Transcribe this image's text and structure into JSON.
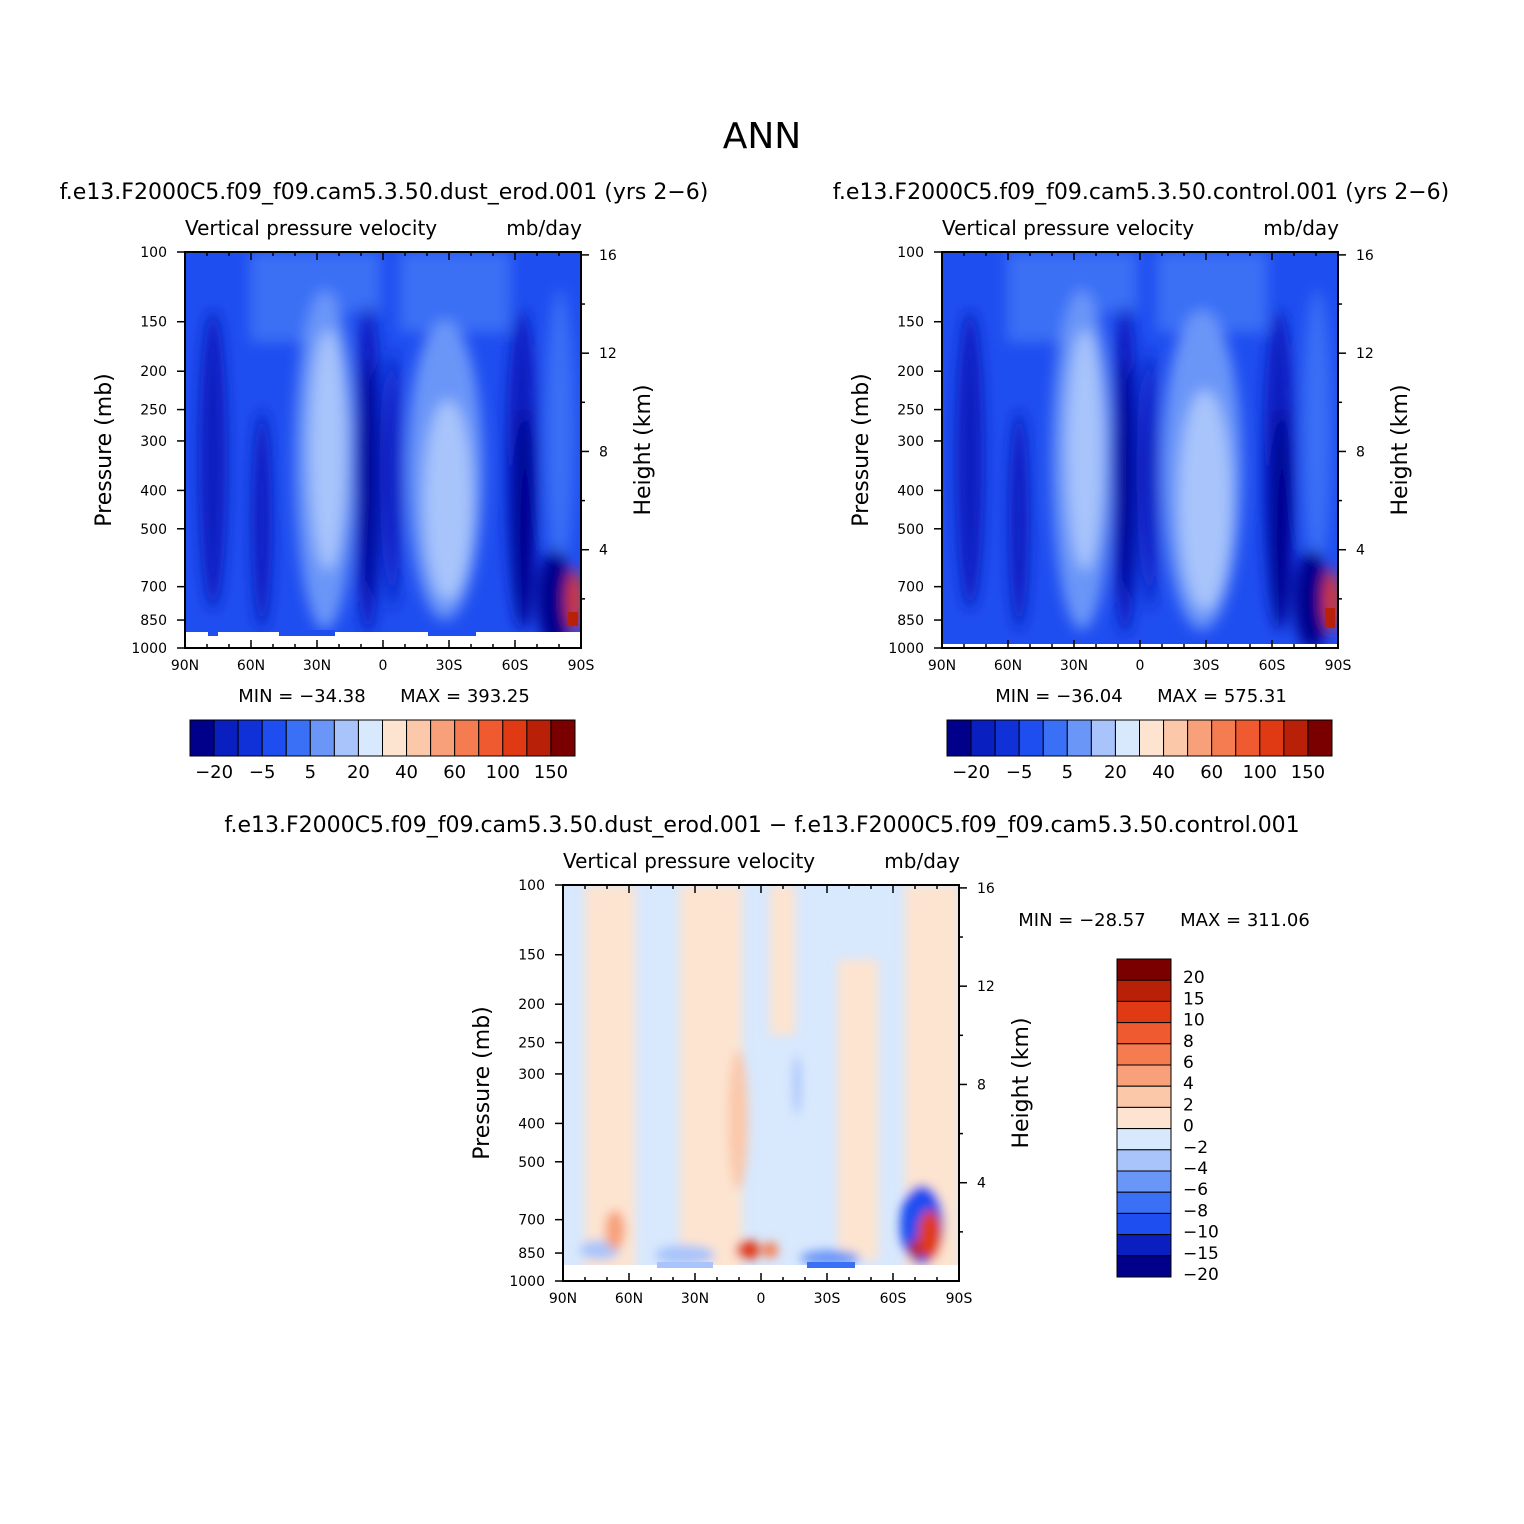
{
  "figure": {
    "title": "ANN"
  },
  "chart_data": [
    {
      "type": "heatmap",
      "run_label": "f.e13.F2000C5.f09_f09.cam5.3.50.dust_erod.001  (yrs 2−6)",
      "title": "Vertical pressure velocity",
      "units": "mb/day",
      "ylabel": "Pressure (mb)",
      "y2label": "Height (km)",
      "xticks": [
        "90N",
        "60N",
        "30N",
        "0",
        "30S",
        "60S",
        "90S"
      ],
      "yticks": [
        100,
        150,
        200,
        250,
        300,
        400,
        500,
        700,
        850,
        1000
      ],
      "y2ticks": [
        16,
        12,
        8,
        4
      ],
      "ylim": [
        1000,
        100
      ],
      "min_label": "MIN = −34.38",
      "max_label": "MAX = 393.25",
      "levels": [
        -20,
        -15,
        -10,
        -5,
        -2,
        5,
        10,
        20,
        30,
        40,
        50,
        60,
        80,
        100,
        120,
        150
      ],
      "colorbar_labels": [
        "−20",
        "−5",
        "5",
        "20",
        "40",
        "60",
        "100",
        "150"
      ]
    },
    {
      "type": "heatmap",
      "run_label": "f.e13.F2000C5.f09_f09.cam5.3.50.control.001  (yrs 2−6)",
      "title": "Vertical pressure velocity",
      "units": "mb/day",
      "ylabel": "Pressure (mb)",
      "y2label": "Height (km)",
      "xticks": [
        "90N",
        "60N",
        "30N",
        "0",
        "30S",
        "60S",
        "90S"
      ],
      "yticks": [
        100,
        150,
        200,
        250,
        300,
        400,
        500,
        700,
        850,
        1000
      ],
      "y2ticks": [
        16,
        12,
        8,
        4
      ],
      "ylim": [
        1000,
        100
      ],
      "min_label": "MIN = −36.04",
      "max_label": "MAX = 575.31",
      "levels": [
        -20,
        -15,
        -10,
        -5,
        -2,
        5,
        10,
        20,
        30,
        40,
        50,
        60,
        80,
        100,
        120,
        150
      ],
      "colorbar_labels": [
        "−20",
        "−5",
        "5",
        "20",
        "40",
        "60",
        "100",
        "150"
      ]
    },
    {
      "type": "heatmap",
      "run_label": "f.e13.F2000C5.f09_f09.cam5.3.50.dust_erod.001 − f.e13.F2000C5.f09_f09.cam5.3.50.control.001",
      "title": "Vertical pressure velocity",
      "units": "mb/day",
      "ylabel": "Pressure (mb)",
      "y2label": "Height (km)",
      "xticks": [
        "90N",
        "60N",
        "30N",
        "0",
        "30S",
        "60S",
        "90S"
      ],
      "yticks": [
        100,
        150,
        200,
        250,
        300,
        400,
        500,
        700,
        850,
        1000
      ],
      "y2ticks": [
        16,
        12,
        8,
        4
      ],
      "ylim": [
        1000,
        100
      ],
      "min_label": "MIN = −28.57",
      "max_label": "MAX = 311.06",
      "levels": [
        20,
        15,
        10,
        8,
        6,
        4,
        2,
        0,
        -2,
        -4,
        -6,
        -8,
        -10,
        -15,
        -20
      ],
      "colorbar_labels": [
        "20",
        "15",
        "10",
        "8",
        "6",
        "4",
        "2",
        "0",
        "−2",
        "−4",
        "−6",
        "−8",
        "−10",
        "−15",
        "−20"
      ]
    }
  ],
  "colors": {
    "abs_palette": [
      "#00008b",
      "#0a1fbf",
      "#1030d8",
      "#1f4ef0",
      "#3a70f5",
      "#6a96f8",
      "#a8c4fb",
      "#d8e8fd",
      "#fde4d0",
      "#fbc8aa",
      "#f7a07a",
      "#f57b50",
      "#f05a30",
      "#e03a15",
      "#b82008",
      "#7a0000"
    ],
    "diff_palette": [
      "#7a0000",
      "#b82008",
      "#e03a15",
      "#f05a30",
      "#f57b50",
      "#f7a07a",
      "#fbc8aa",
      "#fde4d0",
      "#d8e8fd",
      "#a8c4fb",
      "#6a96f8",
      "#3a70f5",
      "#1f4ef0",
      "#0a1fbf",
      "#00008b"
    ]
  }
}
